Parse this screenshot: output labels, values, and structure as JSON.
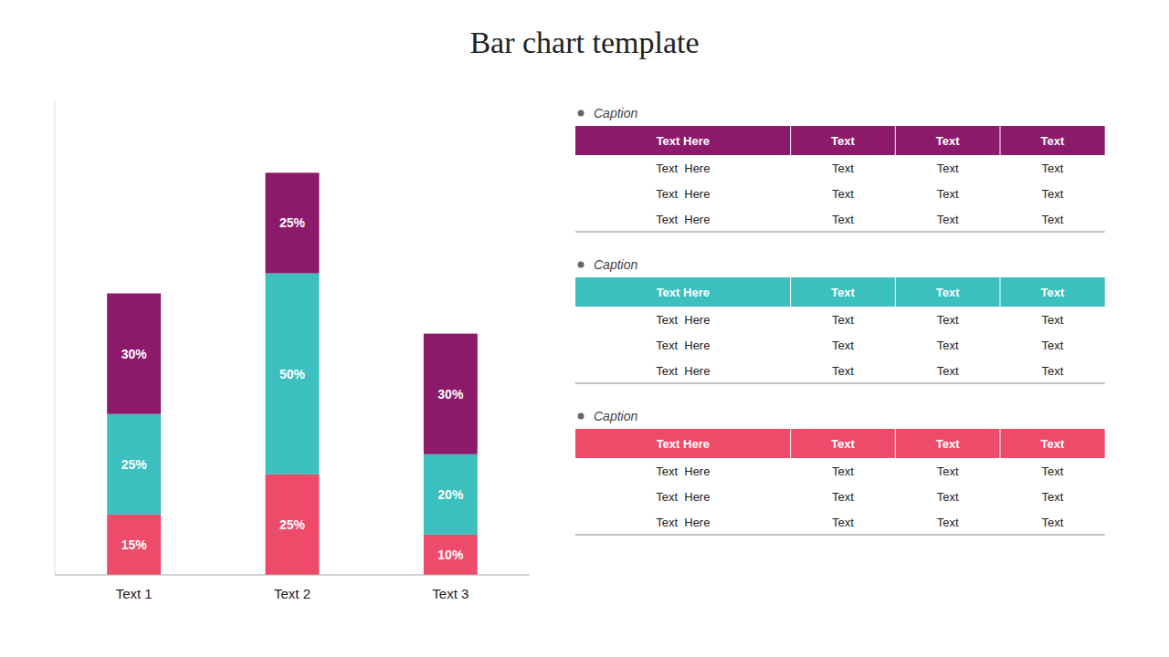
{
  "chart_data": [
    {
      "type": "bar",
      "title": "Bar chart template",
      "stacked": true,
      "data_labels": true,
      "tick_labels": "x",
      "categories": [
        "Text 1",
        "Text 2",
        "Text 3"
      ],
      "ylim": [
        0,
        118
      ],
      "series": [
        {
          "color": "#EE4B6A",
          "values": [
            15,
            25,
            10
          ],
          "value_labels": [
            "15%",
            "25%",
            "10%"
          ]
        },
        {
          "color": "#3BBFBF",
          "values": [
            25,
            50,
            20
          ],
          "value_labels": [
            "25%",
            "50%",
            "20%"
          ]
        },
        {
          "color": "#8B1A6B",
          "values": [
            30,
            25,
            30
          ],
          "value_labels": [
            "30%",
            "25%",
            "30%"
          ]
        }
      ]
    },
    {
      "type": "table",
      "title": "Caption",
      "color": "#8B1A6B",
      "columns": [
        "Text Here",
        "Text",
        "Text",
        "Text"
      ],
      "rows": [
        [
          "Text  Here",
          "Text",
          "Text",
          "Text"
        ],
        [
          "Text  Here",
          "Text",
          "Text",
          "Text"
        ],
        [
          "Text  Here",
          "Text",
          "Text",
          "Text"
        ]
      ]
    },
    {
      "type": "table",
      "title": "Caption",
      "color": "#3BBFBF",
      "columns": [
        "Text Here",
        "Text",
        "Text",
        "Text"
      ],
      "rows": [
        [
          "Text  Here",
          "Text",
          "Text",
          "Text"
        ],
        [
          "Text  Here",
          "Text",
          "Text",
          "Text"
        ],
        [
          "Text  Here",
          "Text",
          "Text",
          "Text"
        ]
      ]
    },
    {
      "type": "table",
      "title": "Caption",
      "color": "#EE4B6A",
      "columns": [
        "Text Here",
        "Text",
        "Text",
        "Text"
      ],
      "rows": [
        [
          "Text  Here",
          "Text",
          "Text",
          "Text"
        ],
        [
          "Text  Here",
          "Text",
          "Text",
          "Text"
        ],
        [
          "Text  Here",
          "Text",
          "Text",
          "Text"
        ]
      ]
    }
  ]
}
